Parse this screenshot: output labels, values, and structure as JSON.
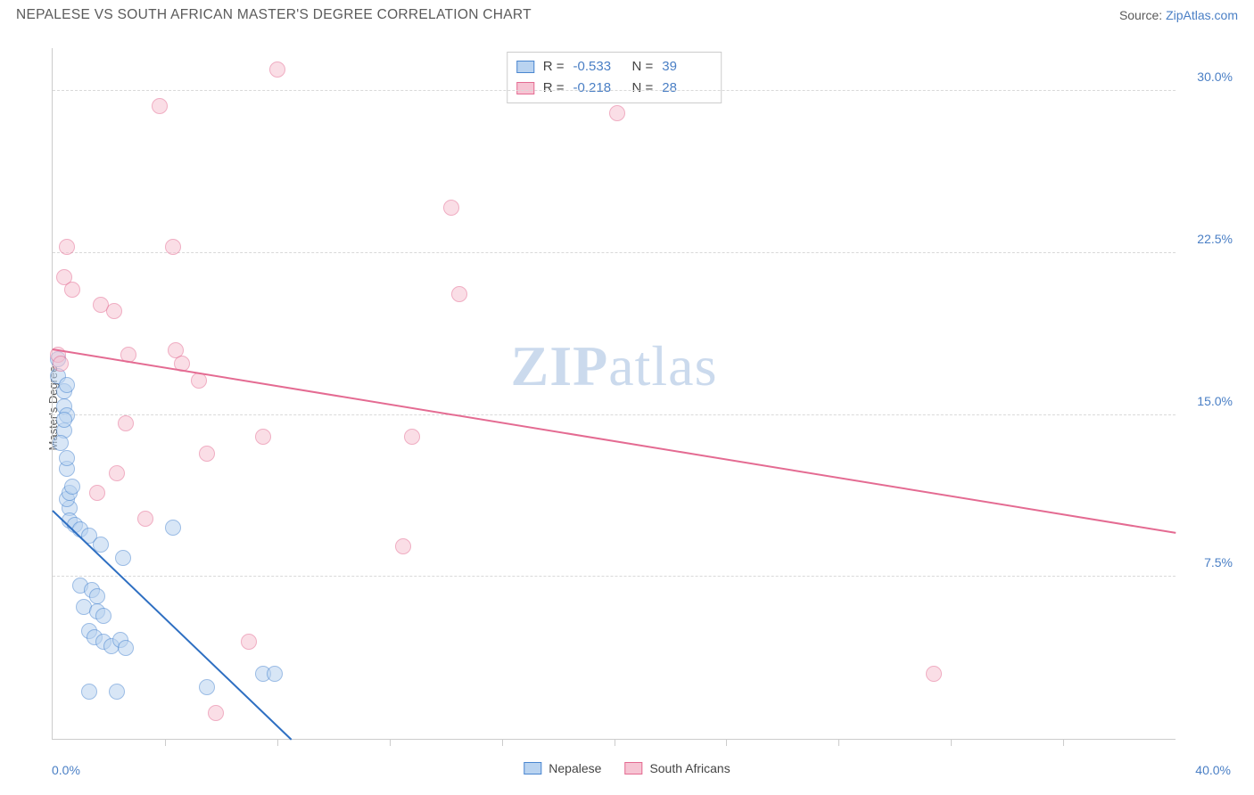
{
  "title": "NEPALESE VS SOUTH AFRICAN MASTER'S DEGREE CORRELATION CHART",
  "source_prefix": "Source: ",
  "source_link": "ZipAtlas.com",
  "ylabel": "Master's Degree",
  "watermark_a": "ZIP",
  "watermark_b": "atlas",
  "chart": {
    "type": "scatter",
    "background_color": "#ffffff",
    "grid_color": "#d9d9d9",
    "axis_color": "#cccccc",
    "text_color": "#5a5a5a",
    "value_color": "#4a7fc5",
    "xlim": [
      0,
      40
    ],
    "ylim": [
      0,
      32
    ],
    "ytick_labels": [
      "7.5%",
      "15.0%",
      "22.5%",
      "30.0%"
    ],
    "ytick_values": [
      7.5,
      15.0,
      22.5,
      30.0
    ],
    "xtick_values": [
      4,
      8,
      12,
      16,
      20,
      24,
      28,
      32,
      36
    ],
    "xaxis_min_label": "0.0%",
    "xaxis_max_label": "40.0%",
    "marker_radius": 9,
    "marker_stroke_width": 1.5,
    "trend_width": 2
  },
  "series": [
    {
      "name": "Nepalese",
      "fill": "#b9d3f0",
      "stroke": "#4a86d0",
      "fill_opacity": 0.55,
      "trend_color": "#2e6fc2",
      "trend": {
        "x1": 0,
        "y1": 10.6,
        "x2": 8.5,
        "y2": 0
      },
      "stats": {
        "R": "-0.533",
        "N": "39"
      },
      "points": [
        [
          0.2,
          17.6
        ],
        [
          0.2,
          16.8
        ],
        [
          0.4,
          16.1
        ],
        [
          0.4,
          15.4
        ],
        [
          0.5,
          15.0
        ],
        [
          0.4,
          14.3
        ],
        [
          0.3,
          13.7
        ],
        [
          0.6,
          10.7
        ],
        [
          0.6,
          10.1
        ],
        [
          0.8,
          9.9
        ],
        [
          1.0,
          9.7
        ],
        [
          1.3,
          9.4
        ],
        [
          4.3,
          9.8
        ],
        [
          1.7,
          9.0
        ],
        [
          2.5,
          8.4
        ],
        [
          1.0,
          7.1
        ],
        [
          1.4,
          6.9
        ],
        [
          1.6,
          6.6
        ],
        [
          1.1,
          6.1
        ],
        [
          1.6,
          5.9
        ],
        [
          1.8,
          5.7
        ],
        [
          1.3,
          5.0
        ],
        [
          1.5,
          4.7
        ],
        [
          1.8,
          4.5
        ],
        [
          2.1,
          4.3
        ],
        [
          2.4,
          4.6
        ],
        [
          2.6,
          4.2
        ],
        [
          5.5,
          2.4
        ],
        [
          7.5,
          3.0
        ],
        [
          7.9,
          3.0
        ],
        [
          1.3,
          2.2
        ],
        [
          2.3,
          2.2
        ],
        [
          0.5,
          11.1
        ],
        [
          0.6,
          11.4
        ],
        [
          0.7,
          11.7
        ],
        [
          0.5,
          12.5
        ],
        [
          0.5,
          13.0
        ],
        [
          0.4,
          14.8
        ],
        [
          0.5,
          16.4
        ]
      ]
    },
    {
      "name": "South Africans",
      "fill": "#f6c4d3",
      "stroke": "#e46b92",
      "fill_opacity": 0.55,
      "trend_color": "#e46b92",
      "trend": {
        "x1": 0,
        "y1": 18.1,
        "x2": 40,
        "y2": 9.6
      },
      "stats": {
        "R": "-0.218",
        "N": "28"
      },
      "points": [
        [
          8.0,
          31.0
        ],
        [
          3.8,
          29.3
        ],
        [
          20.1,
          29.0
        ],
        [
          14.2,
          24.6
        ],
        [
          0.5,
          22.8
        ],
        [
          4.3,
          22.8
        ],
        [
          0.4,
          21.4
        ],
        [
          0.7,
          20.8
        ],
        [
          1.7,
          20.1
        ],
        [
          2.2,
          19.8
        ],
        [
          0.2,
          17.8
        ],
        [
          2.7,
          17.8
        ],
        [
          4.4,
          18.0
        ],
        [
          4.6,
          17.4
        ],
        [
          5.2,
          16.6
        ],
        [
          14.5,
          20.6
        ],
        [
          2.6,
          14.6
        ],
        [
          7.5,
          14.0
        ],
        [
          12.8,
          14.0
        ],
        [
          5.5,
          13.2
        ],
        [
          1.6,
          11.4
        ],
        [
          3.3,
          10.2
        ],
        [
          2.3,
          12.3
        ],
        [
          12.5,
          8.9
        ],
        [
          7.0,
          4.5
        ],
        [
          5.8,
          1.2
        ],
        [
          31.4,
          3.0
        ],
        [
          0.3,
          17.4
        ]
      ]
    }
  ],
  "legend": {
    "stats_labels": {
      "R": "R =",
      "N": "N ="
    },
    "bottom": [
      "Nepalese",
      "South Africans"
    ]
  }
}
